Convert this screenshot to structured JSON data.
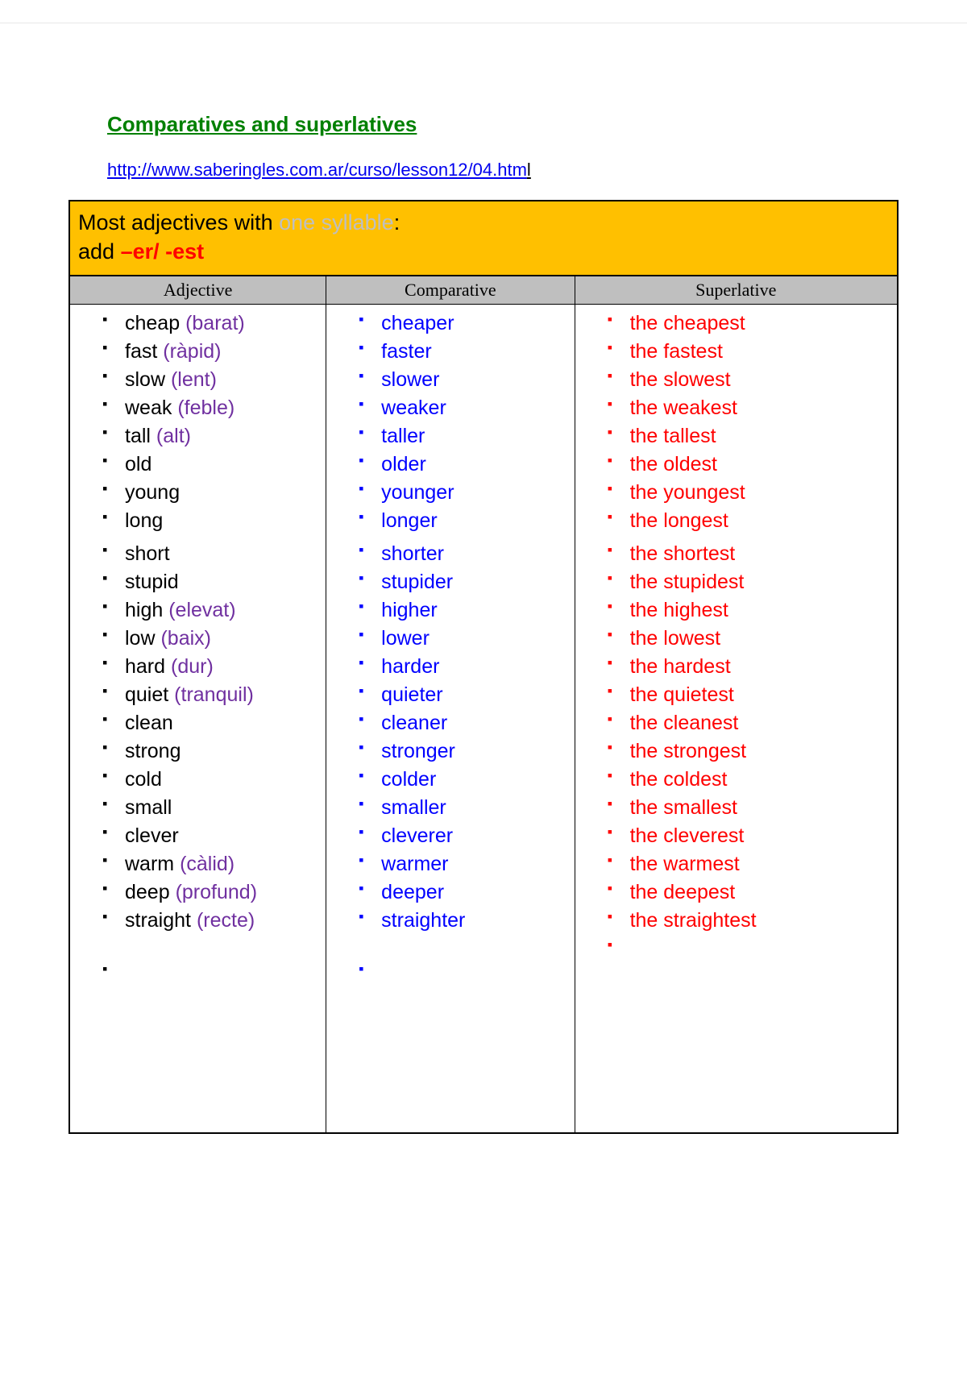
{
  "title": "Comparatives and superlatives",
  "link": {
    "main": "http://www.saberingles.com.ar/curso/lesson12/04.htm",
    "trail": "l"
  },
  "rule": {
    "prefix": "Most adjectives with ",
    "highlight": "one syllable",
    "suffix": ":",
    "line2_prefix": "add ",
    "line2_red": "–er/  -est"
  },
  "headers": {
    "c1": "Adjective",
    "c2": "Comparative",
    "c3": "Superlative"
  },
  "rows": [
    {
      "adj": "cheap",
      "tr": "(barat)",
      "cmp": "cheaper",
      "sup": "the cheapest"
    },
    {
      "adj": "fast",
      "tr": "(ràpid)",
      "cmp": "faster",
      "sup": "the fastest"
    },
    {
      "adj": "slow",
      "tr": "(lent)",
      "cmp": "slower",
      "sup": "the slowest"
    },
    {
      "adj": "weak",
      "tr": "(feble)",
      "cmp": "weaker",
      "sup": "the weakest"
    },
    {
      "adj": "tall",
      "tr": "(alt)",
      "cmp": "taller",
      "sup": "the tallest"
    },
    {
      "adj": "old",
      "tr": "",
      "cmp": "older",
      "sup": "the oldest"
    },
    {
      "adj": "young",
      "tr": "",
      "cmp": "younger",
      "sup": "the youngest"
    },
    {
      "adj": "long",
      "tr": "",
      "cmp": "longer",
      "sup": "the longest"
    },
    {
      "adj": "short",
      "tr": "",
      "cmp": "shorter",
      "sup": "the shortest",
      "gap": true
    },
    {
      "adj": "stupid",
      "tr": "",
      "cmp": "stupider",
      "sup": "the stupidest"
    },
    {
      "adj": "high",
      "tr": "(elevat)",
      "cmp": "higher",
      "sup": "the highest"
    },
    {
      "adj": "low",
      "tr": "(baix)",
      "cmp": "lower",
      "sup": "the lowest"
    },
    {
      "adj": "hard",
      "tr": "(dur)",
      "cmp": "harder",
      "sup": "the hardest"
    },
    {
      "adj": "quiet",
      "tr": "(tranquil)",
      "cmp": "quieter",
      "sup": "the quietest"
    },
    {
      "adj": "clean",
      "tr": "",
      "cmp": "cleaner",
      "sup": "the cleanest"
    },
    {
      "adj": "strong",
      "tr": "",
      "cmp": "stronger",
      "sup": "the strongest"
    },
    {
      "adj": "cold",
      "tr": "",
      "cmp": "colder",
      "sup": "the coldest"
    },
    {
      "adj": "small",
      "tr": "",
      "cmp": "smaller",
      "sup": "the smallest"
    },
    {
      "adj": "clever",
      "tr": "",
      "cmp": "cleverer",
      "sup": "the cleverest"
    },
    {
      "adj": "warm",
      "tr": "(càlid)",
      "cmp": "warmer",
      "sup": "the warmest"
    },
    {
      "adj": "deep",
      "tr": "(profund)",
      "cmp": "deeper",
      "sup": "the deepest"
    },
    {
      "adj": "straight",
      "tr": "(recte)",
      "cmp": "straighter",
      "sup": "the straightest"
    }
  ],
  "colors": {
    "title": "#008000",
    "header_bg": "#ffc000",
    "col_bg": "#bfbfbf",
    "translation": "#7030a0",
    "comparative": "#0000ff",
    "superlative": "#ff0000"
  }
}
